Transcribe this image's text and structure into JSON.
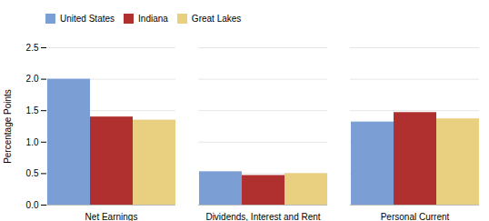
{
  "chart_data": {
    "type": "bar",
    "categories": [
      "Net Earnings",
      "Dividends, Interest and Rent",
      "Personal Current\nTransfer Receipts"
    ],
    "series": [
      {
        "name": "United States",
        "color": "#7b9fd4",
        "values": [
          2.0,
          0.53,
          1.32
        ]
      },
      {
        "name": "Indiana",
        "color": "#b03030",
        "values": [
          1.4,
          0.47,
          1.47
        ]
      },
      {
        "name": "Great Lakes",
        "color": "#e8d080",
        "values": [
          1.35,
          0.5,
          1.37
        ]
      }
    ],
    "ylabel": "Percentage Points",
    "ylim": [
      0,
      2.5
    ],
    "yticks": [
      0.0,
      0.5,
      1.0,
      1.5,
      2.0,
      2.5
    ],
    "grid": true,
    "legend": "upper left"
  }
}
